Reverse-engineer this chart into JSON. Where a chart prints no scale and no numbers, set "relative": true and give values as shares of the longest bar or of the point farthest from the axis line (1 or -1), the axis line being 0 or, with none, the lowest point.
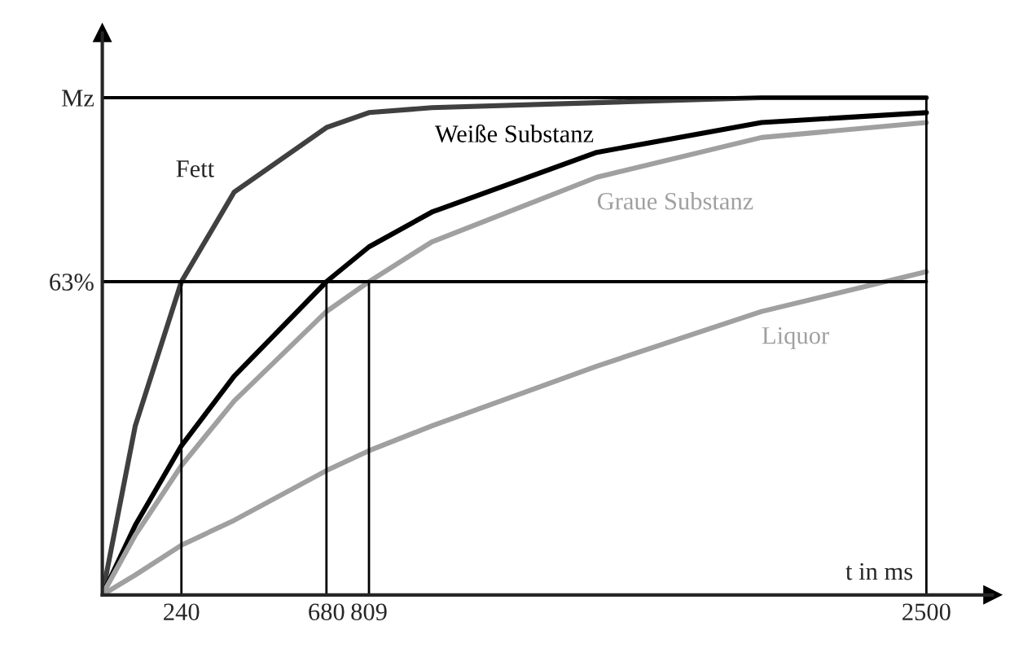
{
  "chart_data": {
    "type": "line",
    "xlabel": "t in ms",
    "relative": true,
    "x": [
      0,
      100,
      240,
      400,
      680,
      809,
      1000,
      1500,
      2000,
      2500
    ],
    "series": [
      {
        "name": "Fett",
        "color": "#404040",
        "values": [
          0,
          0.34,
          0.63,
          0.81,
          0.94,
          0.97,
          0.98,
          0.99,
          1.0,
          1.0
        ]
      },
      {
        "name": "Weiße Substanz",
        "color": "#000000",
        "values": [
          0,
          0.14,
          0.3,
          0.44,
          0.63,
          0.7,
          0.77,
          0.89,
          0.95,
          0.97
        ]
      },
      {
        "name": "Graue Substanz",
        "color": "#a0a0a0",
        "values": [
          0,
          0.12,
          0.26,
          0.39,
          0.57,
          0.63,
          0.71,
          0.84,
          0.92,
          0.95
        ]
      },
      {
        "name": "Liquor",
        "color": "#a0a0a0",
        "values": [
          0,
          0.04,
          0.1,
          0.15,
          0.25,
          0.29,
          0.34,
          0.46,
          0.57,
          0.65
        ]
      }
    ],
    "xlim": [
      0,
      2700
    ],
    "xticks": [
      240,
      680,
      809,
      2500
    ],
    "ref_lines": [
      {
        "axis": "y",
        "value": 1,
        "label": "Mz",
        "color": "#000000"
      },
      {
        "axis": "y",
        "value": 0.63,
        "label": "63%",
        "color": "#000000"
      },
      {
        "axis": "x",
        "value": 240,
        "color": "#000000"
      },
      {
        "axis": "x",
        "value": 680,
        "color": "#000000"
      },
      {
        "axis": "x",
        "value": 809,
        "color": "#000000"
      },
      {
        "axis": "x",
        "value": 2500,
        "color": "#000000"
      }
    ],
    "grid": false,
    "line_style": "solid",
    "marker": "none"
  }
}
